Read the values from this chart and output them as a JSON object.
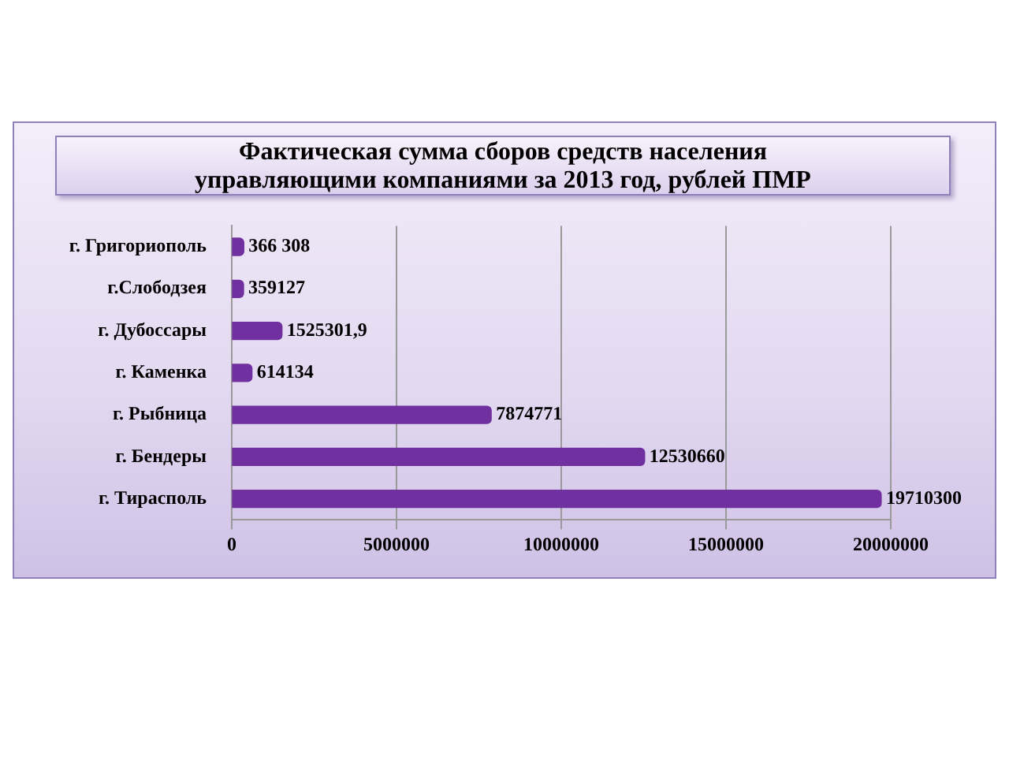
{
  "chart_data": {
    "type": "bar",
    "orientation": "horizontal",
    "title": "Фактическая сумма сборов средств населения\nуправляющими компаниями за 2013 год, рублей ПМР",
    "categories": [
      "г. Григориополь",
      "г.Слободзея",
      "г. Дубоссары",
      "г. Каменка",
      "г. Рыбница",
      "г. Бендеры",
      "г. Тирасполь"
    ],
    "values": [
      366308,
      359127,
      1525301.9,
      614134,
      7874771,
      12530660,
      19710300
    ],
    "value_labels": [
      "366 308",
      "359127",
      "1525301,9",
      "614134",
      "7874771",
      "12530660",
      "19710300"
    ],
    "color": "#7030a0",
    "xlim": [
      0,
      20000000
    ],
    "xticks": [
      0,
      5000000,
      10000000,
      15000000,
      20000000
    ],
    "grid": "x",
    "legend": false
  }
}
